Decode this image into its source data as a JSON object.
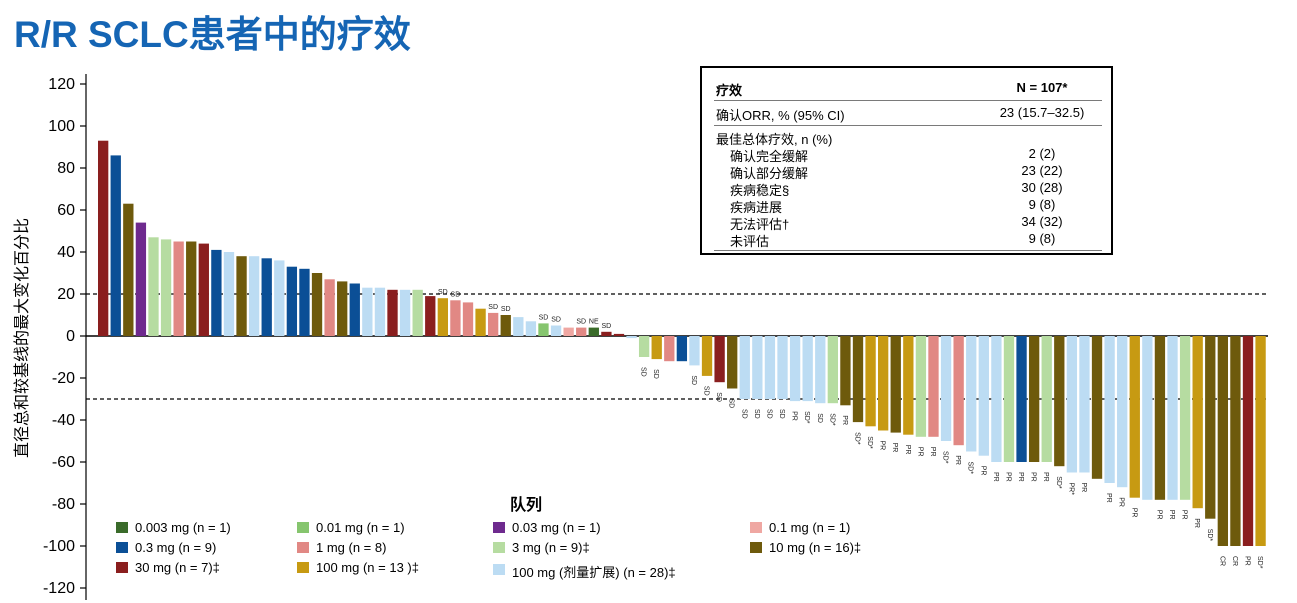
{
  "title": "R/R SCLC患者中的疗效",
  "chart_data": {
    "type": "bar",
    "ylabel": "直径总和较基线的最大变化百分比",
    "ylim": [
      -120,
      120
    ],
    "yticks": [
      120,
      100,
      80,
      60,
      40,
      20,
      0,
      -20,
      -40,
      -60,
      -80,
      -100,
      -120
    ],
    "reference_lines": [
      20,
      -30
    ],
    "grid": false,
    "legend_title": "队列",
    "legend_position": "bottom-center",
    "series": [
      {
        "name": "0.003 mg (n = 1)",
        "color": "#3a6b2a"
      },
      {
        "name": "0.01 mg (n = 1)",
        "color": "#86c56e"
      },
      {
        "name": "0.03 mg (n = 1)",
        "color": "#6e2a8e"
      },
      {
        "name": "0.1 mg (n = 1)",
        "color": "#efa7a2"
      },
      {
        "name": "0.3 mg (n = 9)",
        "color": "#0b4f96"
      },
      {
        "name": "1 mg (n = 8)",
        "color": "#e18884"
      },
      {
        "name": "3 mg (n = 9)‡",
        "color": "#b6dca1"
      },
      {
        "name": "10 mg (n = 16)‡",
        "color": "#6e5a0c"
      },
      {
        "name": "30 mg (n = 7)‡",
        "color": "#8a1e1e"
      },
      {
        "name": "100 mg (n = 13 )‡",
        "color": "#c79a12"
      },
      {
        "name": "100 mg (剂量扩展) (n = 28)‡",
        "color": "#bcdcf3"
      }
    ],
    "bars": [
      {
        "value": 93,
        "cohort": 8,
        "label": ""
      },
      {
        "value": 86,
        "cohort": 4,
        "label": ""
      },
      {
        "value": 63,
        "cohort": 7,
        "label": ""
      },
      {
        "value": 54,
        "cohort": 2,
        "label": ""
      },
      {
        "value": 47,
        "cohort": 6,
        "label": ""
      },
      {
        "value": 46,
        "cohort": 6,
        "label": ""
      },
      {
        "value": 45,
        "cohort": 5,
        "label": ""
      },
      {
        "value": 45,
        "cohort": 7,
        "label": ""
      },
      {
        "value": 44,
        "cohort": 8,
        "label": ""
      },
      {
        "value": 41,
        "cohort": 4,
        "label": ""
      },
      {
        "value": 40,
        "cohort": 10,
        "label": ""
      },
      {
        "value": 38,
        "cohort": 7,
        "label": ""
      },
      {
        "value": 38,
        "cohort": 10,
        "label": ""
      },
      {
        "value": 37,
        "cohort": 4,
        "label": ""
      },
      {
        "value": 36,
        "cohort": 10,
        "label": ""
      },
      {
        "value": 33,
        "cohort": 4,
        "label": ""
      },
      {
        "value": 32,
        "cohort": 4,
        "label": ""
      },
      {
        "value": 30,
        "cohort": 7,
        "label": ""
      },
      {
        "value": 27,
        "cohort": 5,
        "label": ""
      },
      {
        "value": 26,
        "cohort": 7,
        "label": ""
      },
      {
        "value": 25,
        "cohort": 4,
        "label": ""
      },
      {
        "value": 23,
        "cohort": 10,
        "label": ""
      },
      {
        "value": 23,
        "cohort": 10,
        "label": ""
      },
      {
        "value": 22,
        "cohort": 8,
        "label": ""
      },
      {
        "value": 22,
        "cohort": 10,
        "label": ""
      },
      {
        "value": 22,
        "cohort": 6,
        "label": ""
      },
      {
        "value": 19,
        "cohort": 8,
        "label": ""
      },
      {
        "value": 18,
        "cohort": 9,
        "label": "SD"
      },
      {
        "value": 17,
        "cohort": 5,
        "label": "SD"
      },
      {
        "value": 16,
        "cohort": 5,
        "label": ""
      },
      {
        "value": 13,
        "cohort": 9,
        "label": ""
      },
      {
        "value": 11,
        "cohort": 5,
        "label": "SD"
      },
      {
        "value": 10,
        "cohort": 7,
        "label": "SD"
      },
      {
        "value": 9,
        "cohort": 10,
        "label": ""
      },
      {
        "value": 7,
        "cohort": 10,
        "label": ""
      },
      {
        "value": 6,
        "cohort": 1,
        "label": "SD"
      },
      {
        "value": 5,
        "cohort": 10,
        "label": "SD"
      },
      {
        "value": 4,
        "cohort": 3,
        "label": ""
      },
      {
        "value": 4,
        "cohort": 5,
        "label": "SD"
      },
      {
        "value": 4,
        "cohort": 0,
        "label": "NE"
      },
      {
        "value": 2,
        "cohort": 8,
        "label": "SD"
      },
      {
        "value": 1,
        "cohort": 8,
        "label": ""
      },
      {
        "value": -1,
        "cohort": 10,
        "label": ""
      },
      {
        "value": -10,
        "cohort": 6,
        "label": "SD"
      },
      {
        "value": -11,
        "cohort": 9,
        "label": "SD"
      },
      {
        "value": -12,
        "cohort": 5,
        "label": ""
      },
      {
        "value": -12,
        "cohort": 4,
        "label": ""
      },
      {
        "value": -14,
        "cohort": 10,
        "label": "SD"
      },
      {
        "value": -19,
        "cohort": 9,
        "label": "SD"
      },
      {
        "value": -22,
        "cohort": 8,
        "label": "SD"
      },
      {
        "value": -25,
        "cohort": 7,
        "label": "SD"
      },
      {
        "value": -30,
        "cohort": 10,
        "label": "SD"
      },
      {
        "value": -30,
        "cohort": 10,
        "label": "SD"
      },
      {
        "value": -30,
        "cohort": 10,
        "label": "SD"
      },
      {
        "value": -30,
        "cohort": 10,
        "label": "SD"
      },
      {
        "value": -31,
        "cohort": 10,
        "label": "PR"
      },
      {
        "value": -31,
        "cohort": 10,
        "label": "SD*"
      },
      {
        "value": -32,
        "cohort": 10,
        "label": "SD"
      },
      {
        "value": -32,
        "cohort": 6,
        "label": "SD*"
      },
      {
        "value": -33,
        "cohort": 7,
        "label": "PR"
      },
      {
        "value": -41,
        "cohort": 7,
        "label": "SD*"
      },
      {
        "value": -43,
        "cohort": 9,
        "label": "SD*"
      },
      {
        "value": -45,
        "cohort": 9,
        "label": "PR"
      },
      {
        "value": -46,
        "cohort": 7,
        "label": "PR"
      },
      {
        "value": -47,
        "cohort": 9,
        "label": "PR"
      },
      {
        "value": -48,
        "cohort": 6,
        "label": "PR"
      },
      {
        "value": -48,
        "cohort": 5,
        "label": "PR"
      },
      {
        "value": -50,
        "cohort": 10,
        "label": "SD*"
      },
      {
        "value": -52,
        "cohort": 5,
        "label": "PR"
      },
      {
        "value": -55,
        "cohort": 10,
        "label": "SD*"
      },
      {
        "value": -57,
        "cohort": 10,
        "label": "PR"
      },
      {
        "value": -60,
        "cohort": 10,
        "label": "PR"
      },
      {
        "value": -60,
        "cohort": 6,
        "label": "PR"
      },
      {
        "value": -60,
        "cohort": 4,
        "label": "PR"
      },
      {
        "value": -60,
        "cohort": 7,
        "label": "PR"
      },
      {
        "value": -60,
        "cohort": 6,
        "label": "PR"
      },
      {
        "value": -62,
        "cohort": 7,
        "label": "SD*"
      },
      {
        "value": -65,
        "cohort": 10,
        "label": "PR*"
      },
      {
        "value": -65,
        "cohort": 10,
        "label": "PR"
      },
      {
        "value": -68,
        "cohort": 7,
        "label": ""
      },
      {
        "value": -70,
        "cohort": 10,
        "label": "PR"
      },
      {
        "value": -72,
        "cohort": 10,
        "label": "PR"
      },
      {
        "value": -77,
        "cohort": 9,
        "label": "PR"
      },
      {
        "value": -78,
        "cohort": 10,
        "label": ""
      },
      {
        "value": -78,
        "cohort": 7,
        "label": "PR"
      },
      {
        "value": -78,
        "cohort": 10,
        "label": "PR"
      },
      {
        "value": -78,
        "cohort": 6,
        "label": "PR"
      },
      {
        "value": -82,
        "cohort": 9,
        "label": "PR"
      },
      {
        "value": -87,
        "cohort": 7,
        "label": "SD*"
      },
      {
        "value": -100,
        "cohort": 7,
        "label": "CR"
      },
      {
        "value": -100,
        "cohort": 7,
        "label": "CR"
      },
      {
        "value": -100,
        "cohort": 8,
        "label": "PR"
      },
      {
        "value": -100,
        "cohort": 9,
        "label": "SD*"
      }
    ]
  },
  "table": {
    "header": {
      "label": "疗效",
      "value": "N = 107*"
    },
    "orr": {
      "label": "确认ORR, % (95% CI)",
      "value": "23 (15.7–32.5)"
    },
    "section": "最佳总体疗效, n (%)",
    "rows": [
      {
        "label": "确认完全缓解",
        "value": "2 (2)"
      },
      {
        "label": "确认部分缓解",
        "value": "23 (22)"
      },
      {
        "label": "疾病稳定§",
        "value": "30 (28)"
      },
      {
        "label": "疾病进展",
        "value": "9 (8)"
      },
      {
        "label": "无法评估†",
        "value": "34 (32)"
      },
      {
        "label": "未评估",
        "value": "9 (8)"
      }
    ]
  }
}
